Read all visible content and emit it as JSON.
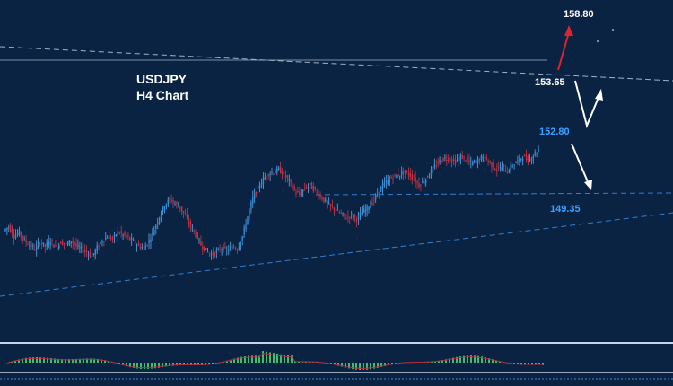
{
  "chart_data": {
    "type": "candlestick",
    "title": "USDJPY",
    "subtitle": "H4 Chart",
    "colors": {
      "background": "#0b2342",
      "bull": "#2e8fe0",
      "bear": "#d42a3c",
      "wick": "#7a8fa8",
      "trend_line": "#2f7fd0",
      "resistance_line": "#9fb2c8",
      "arrow_up": "#e0242e",
      "arrow_white": "#ffffff",
      "label_white": "#ffffff",
      "label_blue": "#3aa0ff",
      "histogram": "#3fbf6a",
      "signal_line": "#b03040"
    },
    "levels": [
      {
        "price": 158.8,
        "label": "158.80",
        "color": "white"
      },
      {
        "price": 153.65,
        "label": "153.65",
        "color": "white"
      },
      {
        "price": 152.8,
        "label": "152.80",
        "color": "blue"
      },
      {
        "price": 149.35,
        "label": "149.35",
        "color": "blue"
      }
    ],
    "ylim": [
      144,
      161
    ],
    "close_path": [
      148.6,
      148.9,
      148.2,
      148.5,
      147.9,
      147.6,
      147.3,
      147.8,
      147.5,
      147.9,
      147.4,
      147.8,
      147.6,
      147.9,
      147.5,
      147.3,
      147.1,
      146.8,
      147.4,
      147.9,
      148.2,
      148.0,
      148.5,
      148.3,
      148.1,
      147.8,
      147.5,
      147.4,
      147.9,
      148.7,
      149.6,
      150.4,
      150.8,
      150.5,
      150.2,
      149.6,
      148.9,
      148.3,
      147.6,
      147.2,
      146.9,
      147.1,
      147.4,
      147.2,
      147.5,
      147.3,
      148.2,
      149.6,
      150.9,
      151.6,
      152.2,
      152.6,
      152.7,
      152.9,
      152.5,
      152.1,
      151.4,
      151.1,
      151.6,
      151.8,
      151.4,
      151.0,
      150.6,
      150.3,
      150.0,
      149.8,
      149.5,
      149.7,
      149.4,
      149.9,
      150.2,
      150.6,
      151.2,
      151.8,
      152.1,
      152.4,
      152.5,
      152.7,
      152.6,
      152.2,
      151.8,
      152.1,
      152.6,
      153.1,
      153.5,
      153.7,
      153.6,
      153.4,
      153.8,
      153.6,
      153.3,
      153.5,
      153.7,
      153.6,
      153.2,
      152.9,
      153.1,
      152.7,
      153.2,
      153.5,
      153.8,
      153.5,
      153.9,
      154.3
    ],
    "arrows": [
      {
        "label": "up-target",
        "to": 158.8,
        "color": "red"
      },
      {
        "label": "zigzag",
        "color": "white"
      },
      {
        "label": "down-target",
        "to": 149.35,
        "color": "white"
      }
    ]
  }
}
